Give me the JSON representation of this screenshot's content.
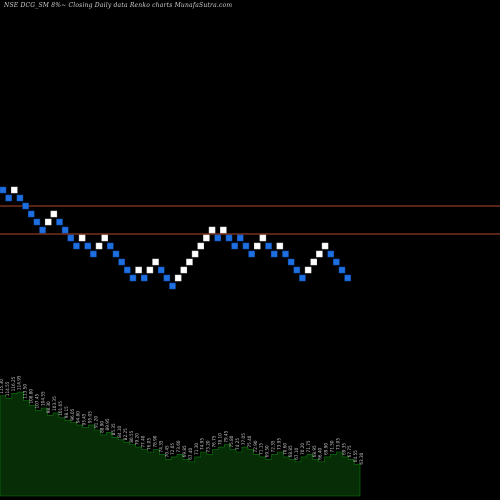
{
  "chart_data": {
    "type": "renko",
    "title": "NSE DCG_SM 8%~  Closing Daily data  Renko  charts MunafaSutra.com",
    "colors": {
      "background": "#000000",
      "up_brick": "#ffffff",
      "down_brick": "#1e6fe0",
      "reference_line": "#b0472c",
      "volume_fill": "#062d06",
      "volume_stroke": "#0c7a0c",
      "label": "#c8c8c8"
    },
    "y_range": [
      60,
      110
    ],
    "reference_levels": [
      100,
      93
    ],
    "bricks": [
      {
        "price": 104,
        "dir": "down"
      },
      {
        "price": 102,
        "dir": "down"
      },
      {
        "price": 104,
        "dir": "up"
      },
      {
        "price": 102,
        "dir": "down"
      },
      {
        "price": 100,
        "dir": "down"
      },
      {
        "price": 98,
        "dir": "down"
      },
      {
        "price": 96,
        "dir": "down"
      },
      {
        "price": 94,
        "dir": "down"
      },
      {
        "price": 96,
        "dir": "up"
      },
      {
        "price": 98,
        "dir": "up"
      },
      {
        "price": 96,
        "dir": "down"
      },
      {
        "price": 94,
        "dir": "down"
      },
      {
        "price": 92,
        "dir": "down"
      },
      {
        "price": 90,
        "dir": "down"
      },
      {
        "price": 92,
        "dir": "up"
      },
      {
        "price": 90,
        "dir": "down"
      },
      {
        "price": 88,
        "dir": "down"
      },
      {
        "price": 90,
        "dir": "up"
      },
      {
        "price": 92,
        "dir": "up"
      },
      {
        "price": 90,
        "dir": "down"
      },
      {
        "price": 88,
        "dir": "down"
      },
      {
        "price": 86,
        "dir": "down"
      },
      {
        "price": 84,
        "dir": "down"
      },
      {
        "price": 82,
        "dir": "down"
      },
      {
        "price": 84,
        "dir": "up"
      },
      {
        "price": 82,
        "dir": "down"
      },
      {
        "price": 84,
        "dir": "up"
      },
      {
        "price": 86,
        "dir": "up"
      },
      {
        "price": 84,
        "dir": "down"
      },
      {
        "price": 82,
        "dir": "down"
      },
      {
        "price": 80,
        "dir": "down"
      },
      {
        "price": 82,
        "dir": "up"
      },
      {
        "price": 84,
        "dir": "up"
      },
      {
        "price": 86,
        "dir": "up"
      },
      {
        "price": 88,
        "dir": "up"
      },
      {
        "price": 90,
        "dir": "up"
      },
      {
        "price": 92,
        "dir": "up"
      },
      {
        "price": 94,
        "dir": "up"
      },
      {
        "price": 92,
        "dir": "down"
      },
      {
        "price": 94,
        "dir": "up"
      },
      {
        "price": 92,
        "dir": "down"
      },
      {
        "price": 90,
        "dir": "down"
      },
      {
        "price": 92,
        "dir": "down"
      },
      {
        "price": 90,
        "dir": "down"
      },
      {
        "price": 88,
        "dir": "down"
      },
      {
        "price": 90,
        "dir": "up"
      },
      {
        "price": 92,
        "dir": "up"
      },
      {
        "price": 90,
        "dir": "down"
      },
      {
        "price": 88,
        "dir": "down"
      },
      {
        "price": 90,
        "dir": "up"
      },
      {
        "price": 88,
        "dir": "down"
      },
      {
        "price": 86,
        "dir": "down"
      },
      {
        "price": 84,
        "dir": "down"
      },
      {
        "price": 82,
        "dir": "down"
      },
      {
        "price": 84,
        "dir": "up"
      },
      {
        "price": 86,
        "dir": "up"
      },
      {
        "price": 88,
        "dir": "up"
      },
      {
        "price": 90,
        "dir": "up"
      },
      {
        "price": 88,
        "dir": "down"
      },
      {
        "price": 86,
        "dir": "down"
      },
      {
        "price": 84,
        "dir": "down"
      },
      {
        "price": 82,
        "dir": "down"
      }
    ],
    "volume": {
      "values": [
        82,
        80,
        84,
        85,
        78,
        74,
        70,
        72,
        66,
        68,
        64,
        62,
        60,
        58,
        56,
        58,
        54,
        50,
        52,
        48,
        46,
        44,
        42,
        40,
        38,
        36,
        38,
        34,
        30,
        32,
        34,
        30,
        28,
        32,
        36,
        34,
        38,
        40,
        42,
        38,
        36,
        40,
        38,
        34,
        32,
        30,
        34,
        36,
        32,
        30,
        28,
        32,
        34,
        30,
        28,
        32,
        34,
        36,
        32,
        30,
        26,
        24
      ],
      "max": 90,
      "labels": [
        "115.30",
        "114.55",
        "116.25",
        "114.95",
        "113.50",
        "108.80",
        "107.45",
        "104.55",
        "98.30",
        "103.35",
        "101.65",
        "98.15",
        "96.05",
        "94.80",
        "93.45",
        "95.05",
        "91.20",
        "88.90",
        "89.95",
        "85.35",
        "84.10",
        "82.25",
        "80.55",
        "79.20",
        "77.40",
        "76.05",
        "78.90",
        "74.35",
        "70.45",
        "72.05",
        "73.60",
        "69.85",
        "67.40",
        "71.30",
        "74.95",
        "73.20",
        "76.75",
        "78.10",
        "79.45",
        "75.80",
        "74.25",
        "77.05",
        "75.40",
        "72.90",
        "71.15",
        "69.50",
        "72.35",
        "73.95",
        "70.60",
        "68.85",
        "67.10",
        "70.20",
        "71.75",
        "68.95",
        "66.40",
        "69.90",
        "71.50",
        "73.05",
        "69.35",
        "67.75",
        "64.55",
        "63.30"
      ]
    }
  }
}
